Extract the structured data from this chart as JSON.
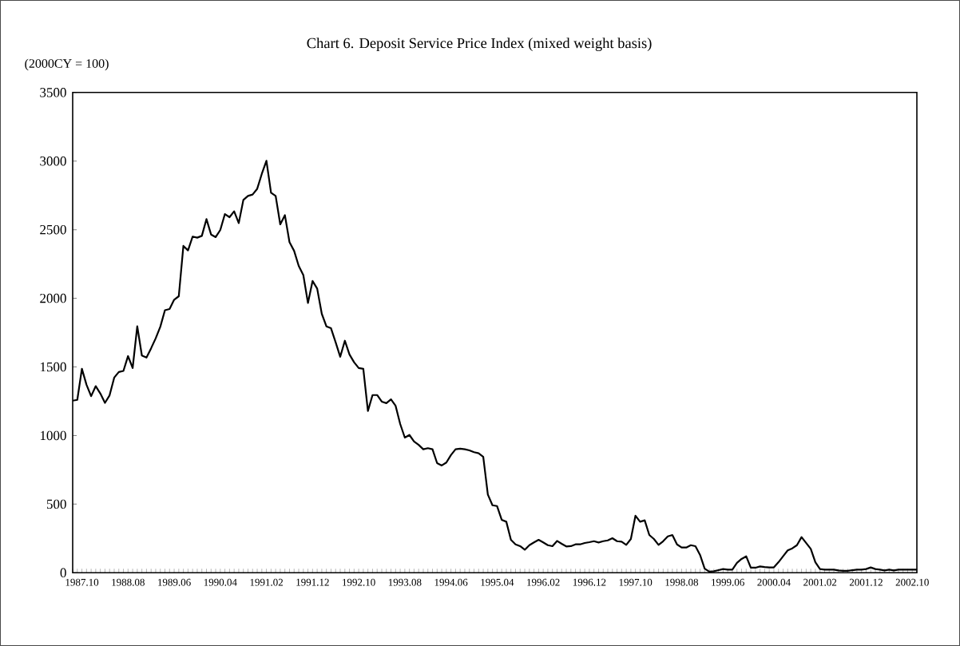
{
  "chart_data": {
    "type": "line",
    "title": "Chart 6. Deposit Service Price Index (mixed weight basis)",
    "ylabel": "(2000CY = 100)",
    "categories": [
      null,
      null,
      "1987.10",
      null,
      null,
      null,
      null,
      null,
      null,
      null,
      null,
      null,
      "1988.08",
      null,
      null,
      null,
      null,
      null,
      null,
      null,
      null,
      null,
      "1989.06",
      null,
      null,
      null,
      null,
      null,
      null,
      null,
      null,
      null,
      "1990.04",
      null,
      null,
      null,
      null,
      null,
      null,
      null,
      null,
      null,
      "1991.02",
      null,
      null,
      null,
      null,
      null,
      null,
      null,
      null,
      null,
      "1991.12",
      null,
      null,
      null,
      null,
      null,
      null,
      null,
      null,
      null,
      "1992.10",
      null,
      null,
      null,
      null,
      null,
      null,
      null,
      null,
      null,
      "1993.08",
      null,
      null,
      null,
      null,
      null,
      null,
      null,
      null,
      null,
      "1994.06",
      null,
      null,
      null,
      null,
      null,
      null,
      null,
      null,
      null,
      "1995.04",
      null,
      null,
      null,
      null,
      null,
      null,
      null,
      null,
      null,
      "1996.02",
      null,
      null,
      null,
      null,
      null,
      null,
      null,
      null,
      null,
      "1996.12",
      null,
      null,
      null,
      null,
      null,
      null,
      null,
      null,
      null,
      "1997.10",
      null,
      null,
      null,
      null,
      null,
      null,
      null,
      null,
      null,
      "1998.08",
      null,
      null,
      null,
      null,
      null,
      null,
      null,
      null,
      null,
      "1999.06",
      null,
      null,
      null,
      null,
      null,
      null,
      null,
      null,
      null,
      "2000.04",
      null,
      null,
      null,
      null,
      null,
      null,
      null,
      null,
      null,
      "2001.02",
      null,
      null,
      null,
      null,
      null,
      null,
      null,
      null,
      null,
      "2001.12",
      null,
      null,
      null,
      null,
      null,
      null,
      null,
      null,
      null,
      "2002.10",
      null
    ],
    "values": [
      1254,
      1260,
      1486,
      1370,
      1287,
      1360,
      1306,
      1238,
      1293,
      1422,
      1463,
      1471,
      1579,
      1492,
      1796,
      1583,
      1568,
      1636,
      1709,
      1793,
      1913,
      1922,
      1990,
      2015,
      2382,
      2349,
      2450,
      2442,
      2455,
      2577,
      2465,
      2446,
      2498,
      2614,
      2591,
      2634,
      2548,
      2717,
      2746,
      2756,
      2798,
      2907,
      3002,
      2769,
      2746,
      2539,
      2606,
      2409,
      2346,
      2236,
      2169,
      1966,
      2126,
      2071,
      1887,
      1796,
      1782,
      1680,
      1574,
      1691,
      1591,
      1534,
      1492,
      1486,
      1179,
      1295,
      1295,
      1247,
      1236,
      1264,
      1217,
      1084,
      985,
      1004,
      957,
      932,
      900,
      908,
      900,
      799,
      782,
      803,
      858,
      900,
      904,
      900,
      892,
      879,
      871,
      845,
      570,
      492,
      486,
      386,
      372,
      240,
      207,
      194,
      168,
      201,
      221,
      240,
      221,
      201,
      194,
      232,
      211,
      192,
      194,
      207,
      207,
      217,
      223,
      230,
      221,
      230,
      236,
      252,
      230,
      226,
      203,
      246,
      416,
      372,
      382,
      275,
      246,
      203,
      230,
      265,
      275,
      207,
      184,
      184,
      201,
      194,
      130,
      30,
      8,
      11,
      19,
      27,
      23,
      23,
      72,
      101,
      120,
      37,
      37,
      46,
      42,
      39,
      39,
      77,
      120,
      163,
      178,
      201,
      260,
      217,
      174,
      77,
      27,
      23,
      23,
      23,
      17,
      14,
      14,
      19,
      23,
      23,
      27,
      39,
      27,
      23,
      17,
      23,
      17,
      23,
      23,
      23,
      23,
      23
    ],
    "color": "#000000",
    "line_style": "solid",
    "ylim": [
      0,
      3500
    ],
    "yticks": [
      0,
      500,
      1000,
      1500,
      2000,
      2500,
      3000,
      3500
    ]
  }
}
